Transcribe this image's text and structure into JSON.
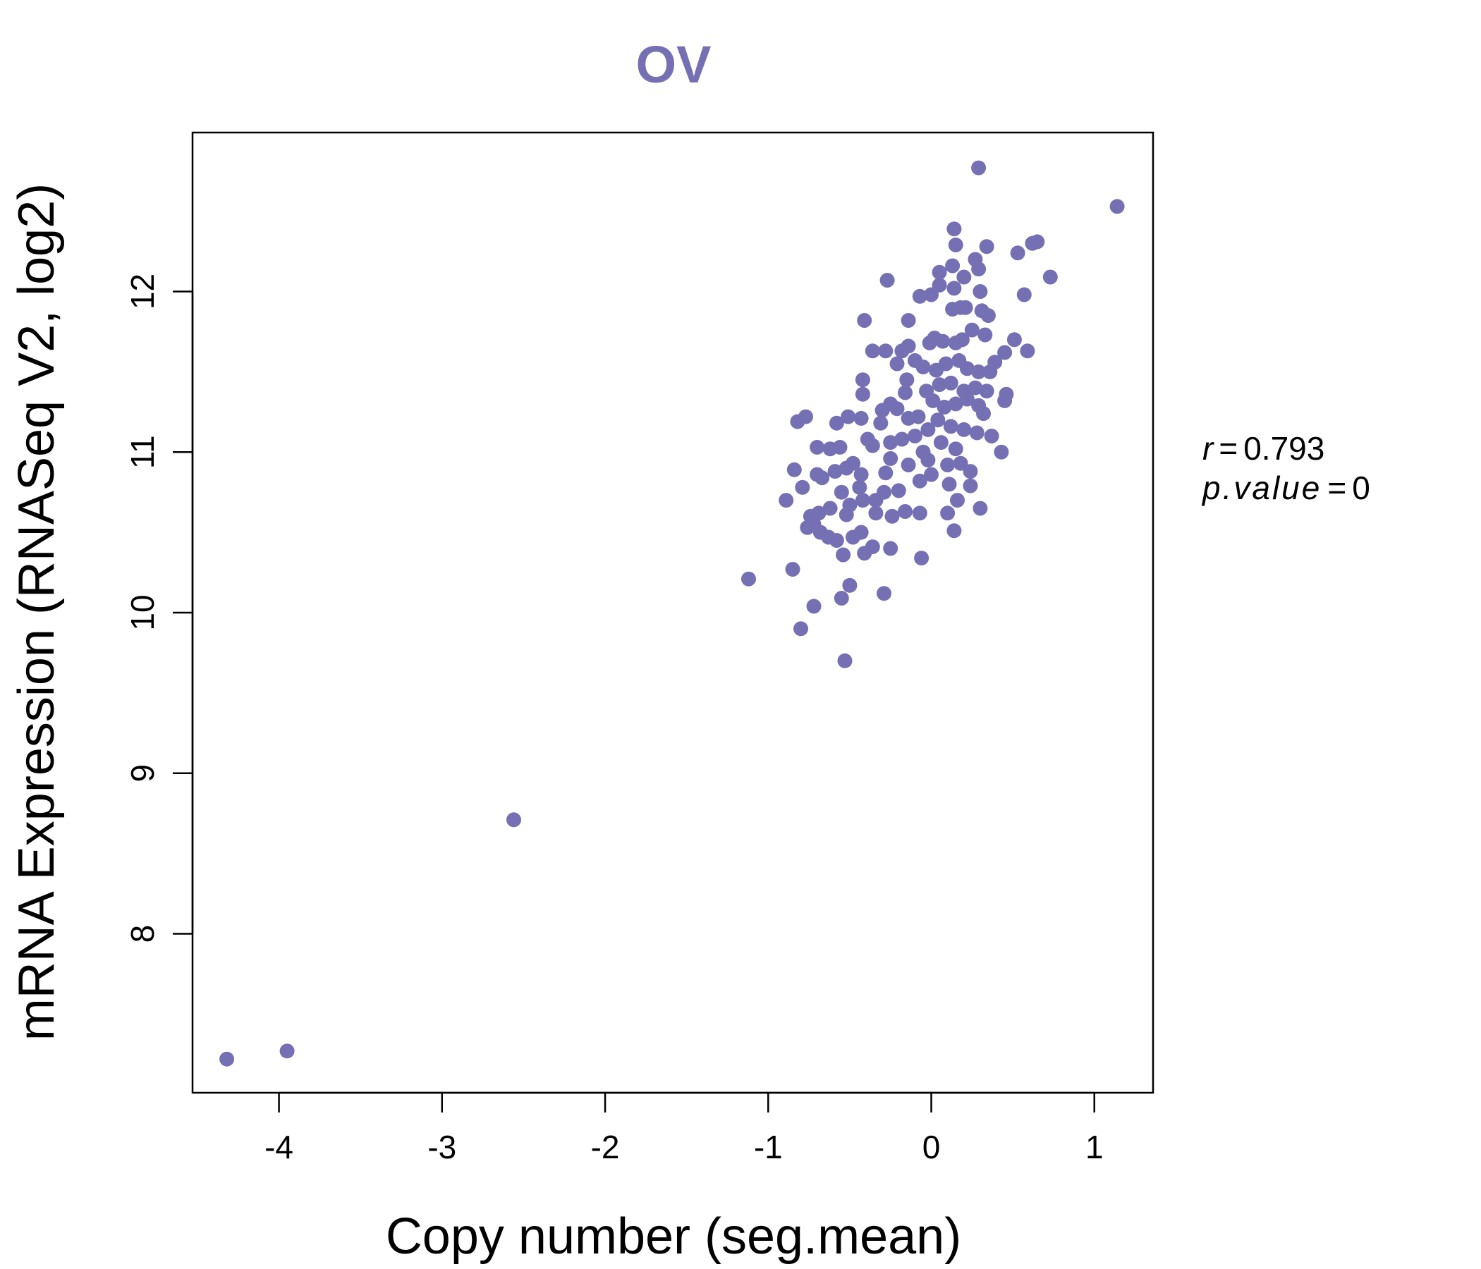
{
  "colors": {
    "accent": "#7570b3",
    "axis": "#000000",
    "background": "#ffffff"
  },
  "chart_data": {
    "type": "scatter",
    "title": "OV",
    "xlabel": "Copy number (seg.mean)",
    "ylabel": "mRNA Expression (RNASeq V2, log2)",
    "xlim": [
      -4.53,
      1.36
    ],
    "ylim": [
      7.01,
      12.99
    ],
    "xticks": [
      -4,
      -3,
      -2,
      -1,
      0,
      1
    ],
    "xtick_labels": [
      "-4",
      "-3",
      "-2",
      "-1",
      "0",
      "1"
    ],
    "yticks": [
      8,
      9,
      10,
      11,
      12
    ],
    "ytick_labels": [
      "8",
      "9",
      "10",
      "11",
      "12"
    ],
    "grid": false,
    "stats": {
      "r_symbol": "r",
      "r_value": "0.793",
      "p_symbol": "p.value",
      "p_value": "0"
    },
    "series": [
      {
        "name": "samples",
        "points": [
          [
            -4.32,
            7.22
          ],
          [
            -3.95,
            7.27
          ],
          [
            -2.56,
            8.71
          ],
          [
            -1.12,
            10.21
          ],
          [
            1.14,
            12.53
          ],
          [
            0.29,
            12.77
          ],
          [
            0.73,
            12.09
          ],
          [
            0.65,
            12.31
          ],
          [
            0.62,
            12.3
          ],
          [
            0.53,
            12.24
          ],
          [
            0.57,
            11.98
          ],
          [
            0.59,
            11.63
          ],
          [
            0.51,
            11.7
          ],
          [
            0.45,
            11.62
          ],
          [
            0.46,
            11.36
          ],
          [
            0.45,
            11.32
          ],
          [
            0.43,
            11.0
          ],
          [
            0.37,
            11.1
          ],
          [
            0.3,
            10.65
          ],
          [
            0.14,
            12.39
          ],
          [
            0.15,
            12.29
          ],
          [
            0.34,
            12.28
          ],
          [
            0.27,
            12.2
          ],
          [
            0.29,
            12.14
          ],
          [
            0.13,
            12.16
          ],
          [
            0.05,
            12.12
          ],
          [
            0.2,
            12.09
          ],
          [
            0.14,
            12.02
          ],
          [
            0.3,
            12.0
          ],
          [
            0.05,
            12.04
          ],
          [
            0.0,
            11.98
          ],
          [
            -0.07,
            11.97
          ],
          [
            0.13,
            11.89
          ],
          [
            0.18,
            11.9
          ],
          [
            0.21,
            11.9
          ],
          [
            0.35,
            11.85
          ],
          [
            0.31,
            11.88
          ],
          [
            -0.14,
            11.82
          ],
          [
            -0.27,
            12.07
          ],
          [
            -0.41,
            11.82
          ],
          [
            0.25,
            11.76
          ],
          [
            0.33,
            11.73
          ],
          [
            0.19,
            11.7
          ],
          [
            0.15,
            11.68
          ],
          [
            0.07,
            11.69
          ],
          [
            0.02,
            11.71
          ],
          [
            -0.01,
            11.68
          ],
          [
            -0.14,
            11.66
          ],
          [
            -0.18,
            11.63
          ],
          [
            -0.28,
            11.63
          ],
          [
            -0.36,
            11.63
          ],
          [
            -0.1,
            11.57
          ],
          [
            -0.05,
            11.53
          ],
          [
            0.03,
            11.51
          ],
          [
            0.09,
            11.55
          ],
          [
            0.17,
            11.57
          ],
          [
            0.22,
            11.52
          ],
          [
            0.29,
            11.5
          ],
          [
            0.36,
            11.5
          ],
          [
            0.39,
            11.56
          ],
          [
            -0.21,
            11.55
          ],
          [
            -0.15,
            11.45
          ],
          [
            -0.42,
            11.45
          ],
          [
            0.05,
            11.42
          ],
          [
            0.12,
            11.43
          ],
          [
            0.2,
            11.38
          ],
          [
            0.27,
            11.4
          ],
          [
            0.34,
            11.38
          ],
          [
            -0.03,
            11.38
          ],
          [
            -0.16,
            11.37
          ],
          [
            -0.42,
            11.36
          ],
          [
            -0.25,
            11.3
          ],
          [
            0.01,
            11.32
          ],
          [
            0.08,
            11.28
          ],
          [
            0.15,
            11.3
          ],
          [
            0.22,
            11.33
          ],
          [
            0.29,
            11.29
          ],
          [
            0.32,
            11.24
          ],
          [
            -0.08,
            11.22
          ],
          [
            -0.14,
            11.21
          ],
          [
            -0.21,
            11.27
          ],
          [
            -0.3,
            11.26
          ],
          [
            -0.43,
            11.21
          ],
          [
            -0.51,
            11.22
          ],
          [
            -0.58,
            11.18
          ],
          [
            -0.77,
            11.22
          ],
          [
            -0.82,
            11.19
          ],
          [
            -0.31,
            11.18
          ],
          [
            -0.02,
            11.14
          ],
          [
            0.04,
            11.2
          ],
          [
            0.12,
            11.16
          ],
          [
            0.2,
            11.14
          ],
          [
            0.28,
            11.12
          ],
          [
            -0.1,
            11.1
          ],
          [
            -0.18,
            11.08
          ],
          [
            -0.39,
            11.08
          ],
          [
            -0.25,
            11.06
          ],
          [
            0.06,
            11.06
          ],
          [
            0.15,
            11.02
          ],
          [
            -0.05,
            11.0
          ],
          [
            -0.36,
            11.04
          ],
          [
            -0.56,
            11.03
          ],
          [
            -0.7,
            11.03
          ],
          [
            -0.62,
            11.02
          ],
          [
            -0.25,
            10.96
          ],
          [
            -0.14,
            10.92
          ],
          [
            -0.02,
            10.95
          ],
          [
            0.1,
            10.92
          ],
          [
            0.18,
            10.93
          ],
          [
            -0.48,
            10.93
          ],
          [
            -0.52,
            10.9
          ],
          [
            -0.59,
            10.88
          ],
          [
            -0.84,
            10.89
          ],
          [
            -0.7,
            10.86
          ],
          [
            -0.67,
            10.84
          ],
          [
            -0.43,
            10.86
          ],
          [
            -0.28,
            10.87
          ],
          [
            0.0,
            10.86
          ],
          [
            0.24,
            10.88
          ],
          [
            -0.07,
            10.82
          ],
          [
            0.11,
            10.8
          ],
          [
            0.24,
            10.79
          ],
          [
            -0.2,
            10.76
          ],
          [
            -0.29,
            10.75
          ],
          [
            -0.44,
            10.78
          ],
          [
            -0.55,
            10.75
          ],
          [
            -0.79,
            10.78
          ],
          [
            -0.89,
            10.7
          ],
          [
            -0.42,
            10.7
          ],
          [
            -0.34,
            10.7
          ],
          [
            -0.5,
            10.67
          ],
          [
            -0.16,
            10.63
          ],
          [
            -0.07,
            10.62
          ],
          [
            0.1,
            10.62
          ],
          [
            0.16,
            10.7
          ],
          [
            -0.62,
            10.65
          ],
          [
            -0.69,
            10.62
          ],
          [
            -0.74,
            10.6
          ],
          [
            -0.52,
            10.61
          ],
          [
            -0.34,
            10.62
          ],
          [
            -0.24,
            10.6
          ],
          [
            -0.72,
            10.55
          ],
          [
            -0.76,
            10.53
          ],
          [
            -0.68,
            10.5
          ],
          [
            -0.63,
            10.47
          ],
          [
            -0.58,
            10.45
          ],
          [
            -0.43,
            10.5
          ],
          [
            -0.48,
            10.47
          ],
          [
            -0.36,
            10.41
          ],
          [
            -0.41,
            10.37
          ],
          [
            -0.54,
            10.36
          ],
          [
            -0.25,
            10.4
          ],
          [
            -0.06,
            10.34
          ],
          [
            0.14,
            10.51
          ],
          [
            -0.85,
            10.27
          ],
          [
            -0.5,
            10.17
          ],
          [
            -0.29,
            10.12
          ],
          [
            -0.55,
            10.09
          ],
          [
            -0.72,
            10.04
          ],
          [
            -0.8,
            9.9
          ],
          [
            -0.53,
            9.7
          ]
        ]
      }
    ]
  }
}
